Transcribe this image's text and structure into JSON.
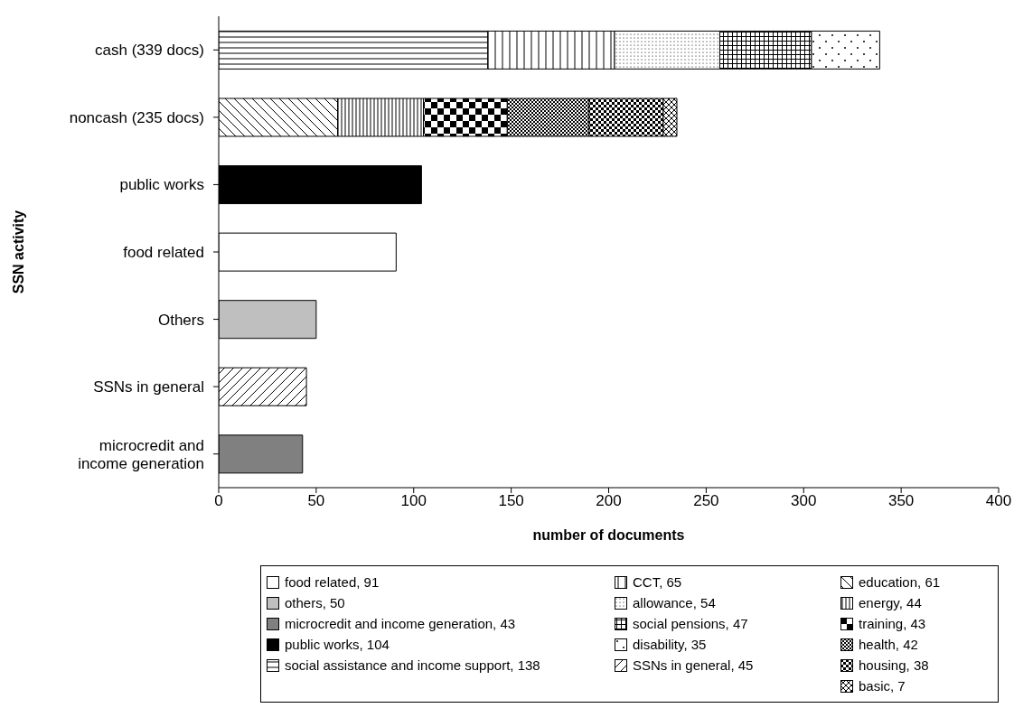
{
  "chart_data": {
    "type": "bar",
    "orientation": "horizontal",
    "stacked": true,
    "xlabel": "number of documents",
    "ylabel": "SSN activity",
    "categories": [
      "cash (339 docs)",
      "noncash (235 docs)",
      "public works",
      "food related",
      "Others",
      "SSNs in general",
      "microcredit and income generation"
    ],
    "xlim": [
      0,
      400
    ],
    "xticks": [
      0,
      50,
      100,
      150,
      200,
      250,
      300,
      350,
      400
    ],
    "legend": "bottom",
    "series": [
      {
        "name": "food related, 91",
        "color": "#ffffff",
        "values": [
          null,
          null,
          null,
          91,
          null,
          null,
          null
        ]
      },
      {
        "name": "others, 50",
        "color": "#bfbfbf",
        "values": [
          null,
          null,
          null,
          null,
          50,
          null,
          null
        ]
      },
      {
        "name": "microcredit and income generation, 43",
        "color": "#808080",
        "values": [
          null,
          null,
          null,
          null,
          null,
          null,
          43
        ]
      },
      {
        "name": "public works, 104",
        "color": "#000000",
        "values": [
          null,
          null,
          104,
          null,
          null,
          null,
          null
        ]
      },
      {
        "name": "social assistance and income support, 138",
        "color": "#000000",
        "values": [
          138,
          null,
          null,
          null,
          null,
          null,
          null
        ]
      },
      {
        "name": "CCT, 65",
        "color": "#000000",
        "values": [
          65,
          null,
          null,
          null,
          null,
          null,
          null
        ]
      },
      {
        "name": "allowance, 54",
        "color": "#000000",
        "values": [
          54,
          null,
          null,
          null,
          null,
          null,
          null
        ]
      },
      {
        "name": "social pensions, 47",
        "color": "#000000",
        "values": [
          47,
          null,
          null,
          null,
          null,
          null,
          null
        ]
      },
      {
        "name": "disability, 35",
        "color": "#000000",
        "values": [
          35,
          null,
          null,
          null,
          null,
          null,
          null
        ]
      },
      {
        "name": "SSNs in general, 45",
        "color": "#000000",
        "values": [
          null,
          null,
          null,
          null,
          null,
          45,
          null
        ]
      },
      {
        "name": "education, 61",
        "color": "#000000",
        "values": [
          null,
          61,
          null,
          null,
          null,
          null,
          null
        ]
      },
      {
        "name": "energy, 44",
        "color": "#000000",
        "values": [
          null,
          44,
          null,
          null,
          null,
          null,
          null
        ]
      },
      {
        "name": "training, 43",
        "color": "#000000",
        "values": [
          null,
          43,
          null,
          null,
          null,
          null,
          null
        ]
      },
      {
        "name": "health, 42",
        "color": "#000000",
        "values": [
          null,
          42,
          null,
          null,
          null,
          null,
          null
        ]
      },
      {
        "name": "housing, 38",
        "color": "#000000",
        "values": [
          null,
          38,
          null,
          null,
          null,
          null,
          null
        ]
      },
      {
        "name": "basic, 7",
        "color": "#000000",
        "values": [
          null,
          7,
          null,
          null,
          null,
          null,
          null
        ]
      }
    ]
  }
}
